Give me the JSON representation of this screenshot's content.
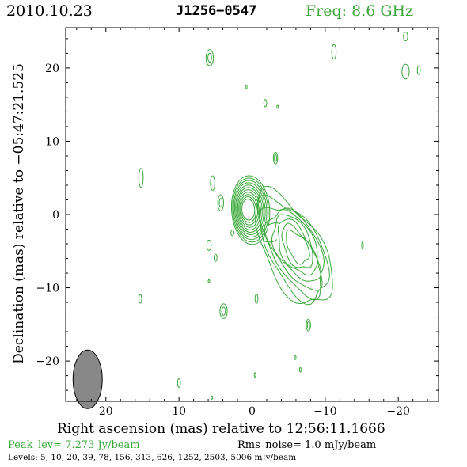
{
  "header": {
    "date": "2010.10.23",
    "source": "J1256−0547",
    "frequency": "Freq: 8.6 GHz"
  },
  "footer": {
    "peak": "Peak_lev=  7.273 Jy/beam",
    "rms": "Rms_noise=  1.0 mJy/beam",
    "levels": "Levels:   5,  10,  20,  39,  78, 156, 313, 626, 1252, 2503, 5006 mJy/beam"
  },
  "colors": {
    "contour": "#3aa83a",
    "beam": "#888888",
    "frame": "#000000"
  },
  "chart_data": {
    "type": "contour",
    "title": "J1256−0547",
    "xlabel": "Right ascension (mas) relative to 12:56:11.1666",
    "ylabel": "Declination (mas) relative to −05:47:21.525",
    "xlim": [
      25.5,
      -25.5
    ],
    "ylim": [
      -25.5,
      25.5
    ],
    "x_ticks": [
      20,
      10,
      0,
      -10,
      -20
    ],
    "y_ticks": [
      20,
      10,
      0,
      -10,
      -20
    ],
    "x_tick_labels": [
      "20",
      "10",
      "0",
      "−10",
      "−20"
    ],
    "y_tick_labels": [
      "20",
      "10",
      "0",
      "−10",
      "−20"
    ],
    "contour_levels_mJy": [
      5,
      10,
      20,
      39,
      78,
      156,
      313,
      626,
      1252,
      2503,
      5006
    ],
    "peak_Jy_per_beam": 7.273,
    "rms_mJy_per_beam": 1.0,
    "beam": {
      "x": 22.5,
      "y": -22.5,
      "major_mas": 4.0,
      "minor_mas": 2.0,
      "pa_deg": 0
    },
    "core": {
      "x": 0.2,
      "y": 0.6,
      "levels": 11
    },
    "jet_component": {
      "x": -5.6,
      "y": -4.8,
      "levels": 8
    },
    "noise_features": [
      {
        "x": 5.8,
        "y": 21.4,
        "rx": 0.5,
        "ry": 1.1,
        "double": true
      },
      {
        "x": 0.8,
        "y": 17.4,
        "rx": 0.1,
        "ry": 0.3,
        "double": false
      },
      {
        "x": -1.8,
        "y": 15.2,
        "rx": 0.2,
        "ry": 0.5,
        "double": false
      },
      {
        "x": -3.5,
        "y": 14.7,
        "rx": 0.1,
        "ry": 0.2,
        "double": false
      },
      {
        "x": -11.2,
        "y": 22.2,
        "rx": 0.3,
        "ry": 1.0,
        "double": false
      },
      {
        "x": -21.0,
        "y": 24.3,
        "rx": 0.3,
        "ry": 0.6,
        "double": false
      },
      {
        "x": -21.0,
        "y": 19.5,
        "rx": 0.5,
        "ry": 1.0,
        "double": false
      },
      {
        "x": -22.8,
        "y": 19.7,
        "rx": 0.2,
        "ry": 0.6,
        "double": false
      },
      {
        "x": -3.2,
        "y": 7.7,
        "rx": 0.3,
        "ry": 0.8,
        "double": true
      },
      {
        "x": 15.2,
        "y": 5.0,
        "rx": 0.3,
        "ry": 1.3,
        "double": false
      },
      {
        "x": 5.4,
        "y": 4.3,
        "rx": 0.3,
        "ry": 1.0,
        "double": false
      },
      {
        "x": 4.3,
        "y": 1.6,
        "rx": 0.4,
        "ry": 1.1,
        "double": true
      },
      {
        "x": 2.7,
        "y": -2.5,
        "rx": 0.2,
        "ry": 0.4,
        "double": false
      },
      {
        "x": 5.9,
        "y": -4.2,
        "rx": 0.3,
        "ry": 0.7,
        "double": false
      },
      {
        "x": 5.0,
        "y": -5.9,
        "rx": 0.2,
        "ry": 0.5,
        "double": false
      },
      {
        "x": -15.1,
        "y": -4.2,
        "rx": 0.1,
        "ry": 0.5,
        "double": false
      },
      {
        "x": 5.9,
        "y": -9.1,
        "rx": 0.1,
        "ry": 0.2,
        "double": false
      },
      {
        "x": 15.3,
        "y": -11.5,
        "rx": 0.2,
        "ry": 0.6,
        "double": false
      },
      {
        "x": -0.6,
        "y": -11.5,
        "rx": 0.2,
        "ry": 0.6,
        "double": false
      },
      {
        "x": 3.9,
        "y": -13.2,
        "rx": 0.5,
        "ry": 1.0,
        "double": true
      },
      {
        "x": -7.7,
        "y": -15.1,
        "rx": 0.3,
        "ry": 0.8,
        "double": true
      },
      {
        "x": -5.9,
        "y": -19.5,
        "rx": 0.1,
        "ry": 0.3,
        "double": false
      },
      {
        "x": -6.6,
        "y": -21.2,
        "rx": 0.1,
        "ry": 0.3,
        "double": false
      },
      {
        "x": -0.4,
        "y": -21.9,
        "rx": 0.1,
        "ry": 0.3,
        "double": false
      },
      {
        "x": 10.0,
        "y": -23.0,
        "rx": 0.2,
        "ry": 0.6,
        "double": false
      },
      {
        "x": 5.5,
        "y": -25.0,
        "rx": 0.1,
        "ry": 0.2,
        "double": false
      }
    ]
  }
}
